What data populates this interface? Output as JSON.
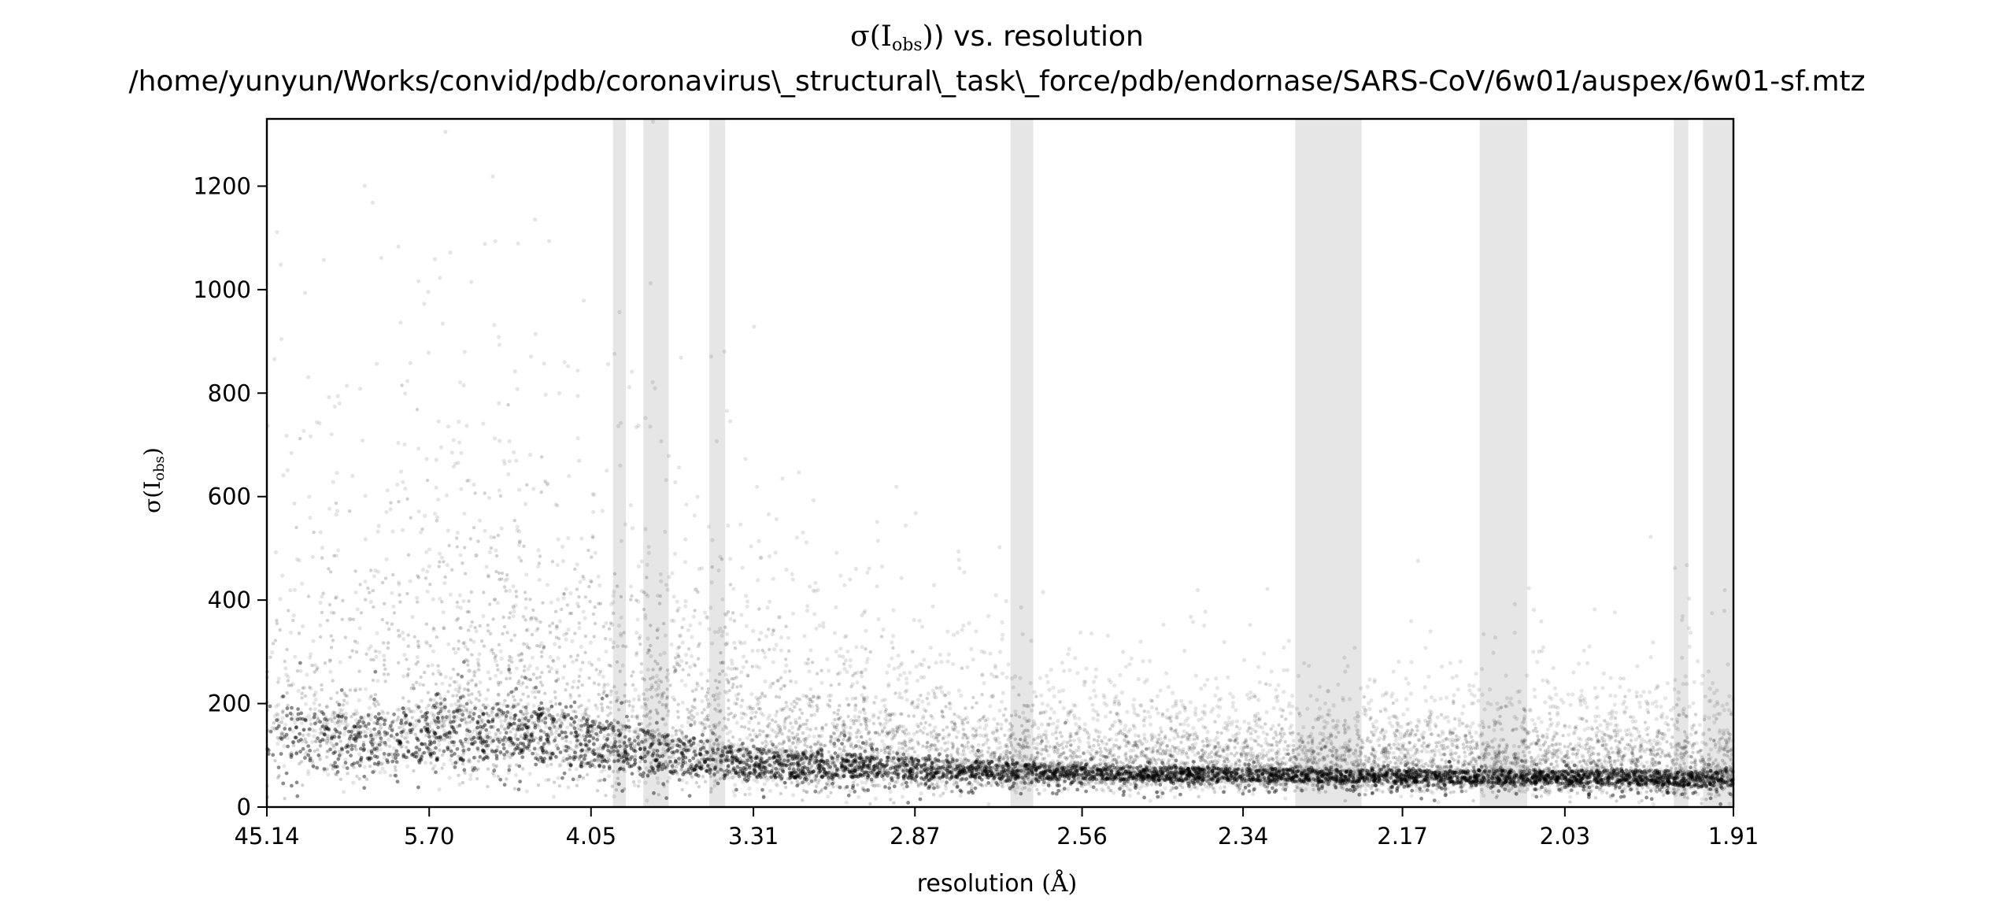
{
  "chart_data": {
    "type": "scatter",
    "title": {
      "main_prefix": "σ(I",
      "main_sub": "obs",
      "main_suffix": ") vs. resolution",
      "path": "/home/yunyun/Works/convid/pdb/coronavirus\\_structural\\_task\\_force/pdb/endornase/SARS-CoV/6w01/auspex/6w01-sf.mtz"
    },
    "xlabel": {
      "text": "resolution ",
      "unit": "(Å)"
    },
    "ylabel": {
      "prefix": "σ(I",
      "sub": "obs",
      "suffix": ")"
    },
    "x_scale": "1/d^2",
    "xlim": [
      45.14,
      1.91
    ],
    "ylim": [
      0,
      1330
    ],
    "x_ticks": [
      "45.14",
      "5.70",
      "4.05",
      "3.31",
      "2.87",
      "2.56",
      "2.34",
      "2.17",
      "2.03",
      "1.91"
    ],
    "y_ticks": [
      0,
      200,
      400,
      600,
      800,
      1000,
      1200
    ],
    "grid": false,
    "legend": "none",
    "ice_ring_bands": [
      {
        "from": 3.92,
        "to": 3.85
      },
      {
        "from": 3.76,
        "to": 3.64
      },
      {
        "from": 3.47,
        "to": 3.41
      },
      {
        "from": 2.68,
        "to": 2.64
      },
      {
        "from": 2.28,
        "to": 2.21
      },
      {
        "from": 2.1,
        "to": 2.06
      },
      {
        "from": 1.95,
        "to": 1.94
      },
      {
        "from": 1.93,
        "to": 1.91
      }
    ],
    "density_profile": [
      {
        "resolution": 30.0,
        "median_sigma": 200,
        "spread": 220
      },
      {
        "resolution": 8.0,
        "median_sigma": 180,
        "spread": 240
      },
      {
        "resolution": 5.7,
        "median_sigma": 200,
        "spread": 250
      },
      {
        "resolution": 4.6,
        "median_sigma": 200,
        "spread": 240
      },
      {
        "resolution": 4.05,
        "median_sigma": 170,
        "spread": 210
      },
      {
        "resolution": 3.6,
        "median_sigma": 140,
        "spread": 170
      },
      {
        "resolution": 3.31,
        "median_sigma": 115,
        "spread": 130
      },
      {
        "resolution": 2.87,
        "median_sigma": 95,
        "spread": 90
      },
      {
        "resolution": 2.56,
        "median_sigma": 80,
        "spread": 60
      },
      {
        "resolution": 2.34,
        "median_sigma": 75,
        "spread": 55
      },
      {
        "resolution": 2.17,
        "median_sigma": 72,
        "spread": 55
      },
      {
        "resolution": 2.03,
        "median_sigma": 72,
        "spread": 60
      },
      {
        "resolution": 1.91,
        "median_sigma": 70,
        "spread": 70
      }
    ],
    "band_color": "#e6e6e6",
    "point_color": "#000000"
  }
}
